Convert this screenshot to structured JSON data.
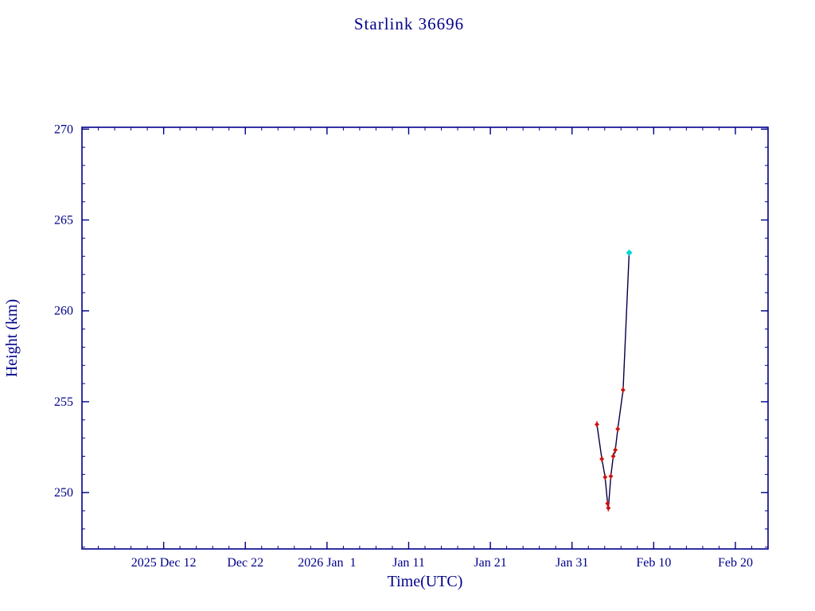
{
  "chart_data": {
    "type": "line",
    "title": "Starlink 36696",
    "xlabel": "Time(UTC)",
    "ylabel": "Height (km)",
    "axis_color": "#00008b",
    "text_color": "#00008b",
    "x_unit": "days from plot left edge (left edge = 2025 Dec 2)",
    "xlim": [
      0,
      84
    ],
    "ylim": [
      246.9,
      270.1
    ],
    "x_minor_step": 2,
    "y_minor_step": 1,
    "grid": false,
    "legend": false,
    "x_ticks": [
      {
        "pos": 10,
        "label": "2025 Dec 12"
      },
      {
        "pos": 20,
        "label": "Dec 22"
      },
      {
        "pos": 30,
        "label": "2026 Jan  1"
      },
      {
        "pos": 40,
        "label": "Jan 11"
      },
      {
        "pos": 50,
        "label": "Jan 21"
      },
      {
        "pos": 60,
        "label": "Jan 31"
      },
      {
        "pos": 70,
        "label": "Feb 10"
      },
      {
        "pos": 80,
        "label": "Feb 20"
      }
    ],
    "y_ticks": [
      {
        "pos": 250,
        "label": "250"
      },
      {
        "pos": 255,
        "label": "255"
      },
      {
        "pos": 260,
        "label": "260"
      },
      {
        "pos": 265,
        "label": "265"
      },
      {
        "pos": 270,
        "label": "270"
      }
    ],
    "markers": {
      "obs": {
        "shape": "errorbar-diamond",
        "color": "#cc1111",
        "error": 0.18,
        "size": 3
      },
      "latest": {
        "shape": "diamond",
        "color": "#00d4d4",
        "size": 4
      }
    },
    "series": [
      {
        "name": "height-track",
        "line_color": "#000046",
        "points": [
          {
            "x": 63.05,
            "y": 253.75,
            "marker": "obs"
          },
          {
            "x": 63.65,
            "y": 251.85,
            "marker": "obs"
          },
          {
            "x": 64.05,
            "y": 250.85,
            "marker": "obs"
          },
          {
            "x": 64.35,
            "y": 249.4,
            "marker": "obs"
          },
          {
            "x": 64.45,
            "y": 249.15,
            "marker": "obs"
          },
          {
            "x": 64.75,
            "y": 250.9,
            "marker": "obs"
          },
          {
            "x": 65.05,
            "y": 252.0,
            "marker": "obs"
          },
          {
            "x": 65.3,
            "y": 252.35,
            "marker": "obs"
          },
          {
            "x": 65.6,
            "y": 253.5,
            "marker": "obs"
          },
          {
            "x": 66.25,
            "y": 255.65,
            "marker": "obs"
          },
          {
            "x": 67.0,
            "y": 263.2,
            "marker": "latest"
          }
        ]
      }
    ]
  }
}
